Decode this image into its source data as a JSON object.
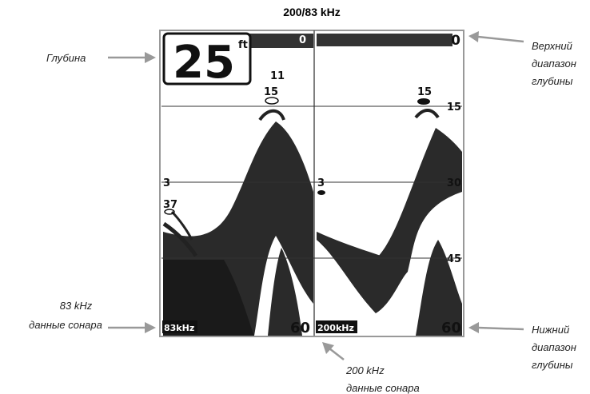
{
  "title": "200/83 kHz",
  "display": {
    "depth": "25",
    "depth_unit": "ft",
    "left_panel": {
      "top_range": "0",
      "fish_labels": [
        "11",
        "15",
        "3",
        "37"
      ],
      "frequency": "83kHz",
      "bottom_range": "60"
    },
    "right_panel": {
      "top_range": "0",
      "fish_labels": [
        "15",
        "3"
      ],
      "depth_marks": [
        "15",
        "30",
        "45"
      ],
      "frequency": "200kHz",
      "bottom_range": "60"
    }
  },
  "annotations": {
    "depth": [
      "Глубина"
    ],
    "upper_range": [
      "Верхний",
      "диапазон",
      "глубины"
    ],
    "sonar_83": [
      "83 kHz",
      "данные сонара"
    ],
    "sonar_200": [
      "200 kHz",
      "данные сонара"
    ],
    "lower_range": [
      "Нижний",
      "диапазон",
      "глубины"
    ]
  }
}
